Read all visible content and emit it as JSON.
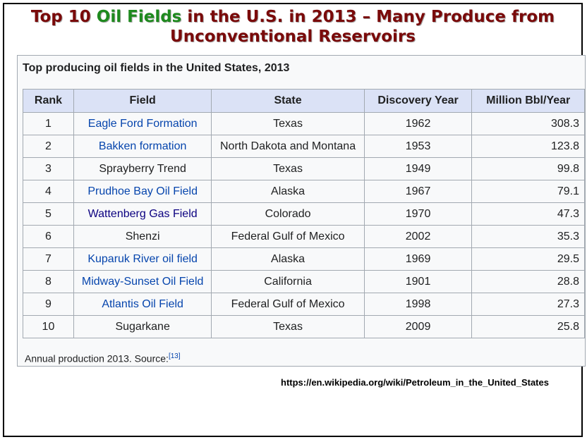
{
  "slide_title": {
    "part1": "Top 10 ",
    "part2": "Oil Fields",
    "part3": " in the U.S. in 2013 – Many Produce from",
    "line2": "Unconventional Reservoirs"
  },
  "table": {
    "caption": "Top producing oil fields in the United States, 2013",
    "headers": [
      "Rank",
      "Field",
      "State",
      "Discovery Year",
      "Million Bbl/Year"
    ],
    "rows": [
      {
        "rank": "1",
        "field": "Eagle Ford Formation",
        "state": "Texas",
        "year": "1962",
        "production": "308.3"
      },
      {
        "rank": "2",
        "field": "Bakken formation",
        "state": "North Dakota and Montana",
        "year": "1953",
        "production": "123.8"
      },
      {
        "rank": "3",
        "field": "Sprayberry Trend",
        "state": "Texas",
        "year": "1949",
        "production": "99.8"
      },
      {
        "rank": "4",
        "field": "Prudhoe Bay Oil Field",
        "state": "Alaska",
        "year": "1967",
        "production": "79.1"
      },
      {
        "rank": "5",
        "field": "Wattenberg Gas Field",
        "state": "Colorado",
        "year": "1970",
        "production": "47.3"
      },
      {
        "rank": "6",
        "field": "Shenzi",
        "state": "Federal Gulf of Mexico",
        "year": "2002",
        "production": "35.3"
      },
      {
        "rank": "7",
        "field": "Kuparuk River oil field",
        "state": "Alaska",
        "year": "1969",
        "production": "29.5"
      },
      {
        "rank": "8",
        "field": "Midway-Sunset Oil Field",
        "state": "California",
        "year": "1901",
        "production": "28.8"
      },
      {
        "rank": "9",
        "field": "Atlantis Oil Field",
        "state": "Federal Gulf of Mexico",
        "year": "1998",
        "production": "27.3"
      },
      {
        "rank": "10",
        "field": "Sugarkane",
        "state": "Texas",
        "year": "2009",
        "production": "25.8"
      }
    ],
    "footnote": "Annual production 2013. Source:",
    "footnote_ref": "[13]"
  },
  "source_url": "https://en.wikipedia.org/wiki/Petroleum_in_the_United_States",
  "colors": {
    "title": "#7a0a0a",
    "title_accent": "#1e8a1e",
    "header_bg": "#dbe2f6",
    "link": "#0645ad",
    "visited_link": "#0b0080"
  }
}
